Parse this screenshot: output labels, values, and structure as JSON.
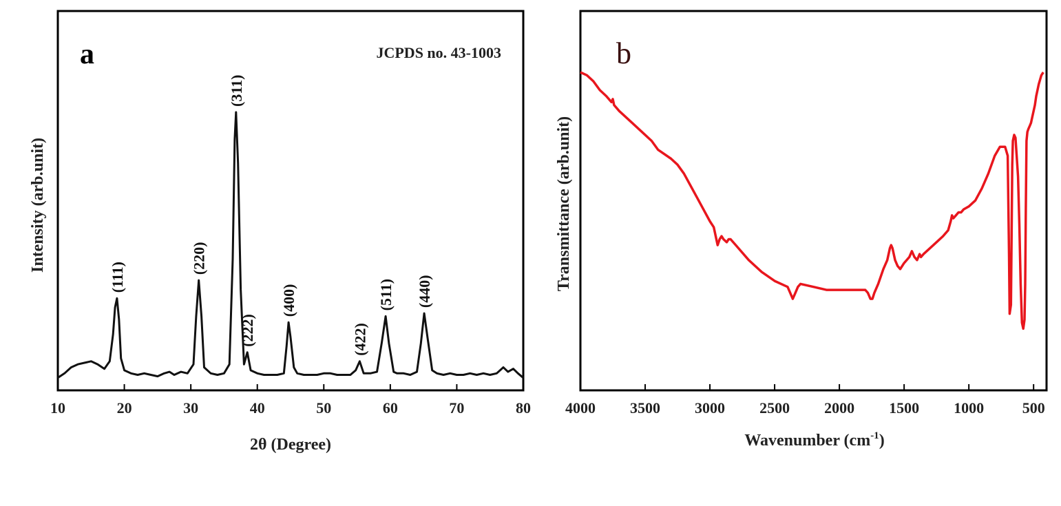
{
  "chart_data": [
    {
      "type": "line",
      "panel_label": "a",
      "annotation": "JCPDS no. 43-1003",
      "title": "",
      "xlabel": "2θ (Degree)",
      "ylabel": "Intensity (arb.unit)",
      "xlim": [
        10,
        80
      ],
      "ylim": [
        0,
        100
      ],
      "y_ticks_shown": false,
      "x_ticks": [
        10,
        20,
        30,
        40,
        50,
        60,
        70,
        80
      ],
      "grid": false,
      "line_color": "#111111",
      "peaks": [
        {
          "label": "(111)",
          "x": 18.9,
          "y": 27
        },
        {
          "label": "(220)",
          "x": 31.2,
          "y": 33
        },
        {
          "label": "(311)",
          "x": 36.8,
          "y": 89
        },
        {
          "label": "(222)",
          "x": 38.5,
          "y": 9
        },
        {
          "label": "(400)",
          "x": 44.7,
          "y": 19
        },
        {
          "label": "(422)",
          "x": 55.4,
          "y": 6
        },
        {
          "label": "(511)",
          "x": 59.3,
          "y": 21
        },
        {
          "label": "(440)",
          "x": 65.1,
          "y": 22
        }
      ],
      "series": [
        {
          "x": [
            10,
            11,
            12,
            13,
            14,
            15,
            16,
            17,
            17.8,
            18.3,
            18.6,
            18.9,
            19.2,
            19.5,
            20,
            21,
            22,
            23,
            24,
            25,
            26,
            26.8,
            27.5,
            28.5,
            29.5,
            30.4,
            30.8,
            31.2,
            31.6,
            32,
            33,
            34,
            35,
            35.8,
            36.3,
            36.6,
            36.8,
            37.1,
            37.5,
            38,
            38.5,
            39,
            40,
            41,
            42,
            43,
            44,
            44.4,
            44.7,
            45,
            45.5,
            46,
            47,
            48,
            49,
            50,
            51,
            52,
            53,
            54,
            54.8,
            55.4,
            56,
            57,
            58,
            58.7,
            59.3,
            59.8,
            60.5,
            61,
            62,
            63,
            64,
            64.6,
            65.1,
            65.6,
            66.3,
            67,
            68,
            69,
            70,
            71,
            72,
            73,
            74,
            75,
            76,
            77,
            77.7,
            78.5,
            79.2,
            80
          ],
          "y": [
            0.5,
            2,
            4,
            5,
            5.5,
            6,
            5,
            3.5,
            6,
            15,
            24,
            27,
            20,
            7,
            3,
            2,
            1.5,
            2,
            1.5,
            1,
            2,
            2.5,
            1.5,
            2.5,
            2,
            5,
            21,
            33,
            21,
            4,
            2,
            1.5,
            2,
            5,
            40,
            80,
            89,
            72,
            30,
            5,
            9,
            3,
            2,
            1.5,
            1.5,
            1.5,
            2,
            11,
            19,
            14,
            4,
            2,
            1.5,
            1.5,
            1.5,
            2,
            2,
            1.5,
            1.5,
            1.5,
            3,
            6,
            2,
            2,
            2.5,
            12,
            21,
            12,
            2.5,
            2,
            2,
            1.5,
            2.5,
            12,
            22,
            14,
            3,
            2,
            1.5,
            2,
            1.5,
            1.5,
            2,
            1.5,
            2,
            1.5,
            2,
            4,
            2.5,
            3.5,
            2,
            0.5
          ]
        }
      ]
    },
    {
      "type": "line",
      "panel_label": "b",
      "title": "",
      "xlabel_main": "Wavenumber (cm",
      "xlabel_sup": "-1",
      "xlabel_end": ")",
      "ylabel": "Transmittance (arb.unit)",
      "xlim": [
        4000,
        400
      ],
      "x_reversed": true,
      "ylim": [
        0,
        100
      ],
      "y_ticks_shown": false,
      "x_ticks": [
        4000,
        3500,
        3000,
        2500,
        2000,
        1500,
        1000,
        500
      ],
      "grid": false,
      "line_color": "#e8161d",
      "series": [
        {
          "x": [
            4000,
            3950,
            3900,
            3850,
            3800,
            3760,
            3750,
            3740,
            3700,
            3600,
            3500,
            3450,
            3400,
            3300,
            3250,
            3200,
            3100,
            3000,
            2970,
            2940,
            2925,
            2910,
            2895,
            2870,
            2855,
            2840,
            2800,
            2700,
            2600,
            2500,
            2400,
            2380,
            2360,
            2340,
            2320,
            2300,
            2200,
            2100,
            2000,
            1900,
            1800,
            1780,
            1760,
            1745,
            1730,
            1700,
            1660,
            1630,
            1610,
            1600,
            1590,
            1570,
            1550,
            1530,
            1500,
            1460,
            1440,
            1420,
            1400,
            1390,
            1380,
            1370,
            1350,
            1300,
            1250,
            1200,
            1160,
            1140,
            1130,
            1120,
            1100,
            1080,
            1060,
            1040,
            1000,
            950,
            900,
            850,
            800,
            760,
            720,
            700,
            690,
            685,
            675,
            670,
            665,
            660,
            650,
            640,
            620,
            610,
            600,
            590,
            580,
            570,
            565,
            560,
            555,
            548,
            540,
            530,
            520,
            510,
            500,
            490,
            480,
            460,
            440,
            425
          ],
          "y": [
            91,
            90,
            88,
            85,
            83,
            81,
            82,
            80,
            78,
            74,
            70,
            68,
            65,
            62,
            60,
            57,
            49,
            41,
            39,
            33,
            35,
            36,
            35,
            34,
            35,
            35,
            33,
            28,
            24,
            21,
            19,
            17,
            15,
            17,
            19,
            20,
            19,
            18,
            18,
            18,
            18,
            17,
            15,
            15,
            17,
            20,
            25,
            28,
            32,
            33,
            32,
            28,
            26,
            25,
            27,
            29,
            31,
            29,
            28,
            29,
            30,
            29,
            30,
            32,
            34,
            36,
            38,
            41,
            43,
            42,
            43,
            44,
            44,
            45,
            46,
            48,
            52,
            57,
            63,
            66,
            66,
            63,
            30,
            10,
            13,
            35,
            60,
            68,
            70,
            69,
            56,
            40,
            20,
            7,
            5,
            8,
            20,
            45,
            68,
            71,
            72,
            73,
            74,
            76,
            78,
            80,
            83,
            87,
            90,
            91
          ]
        }
      ]
    }
  ]
}
